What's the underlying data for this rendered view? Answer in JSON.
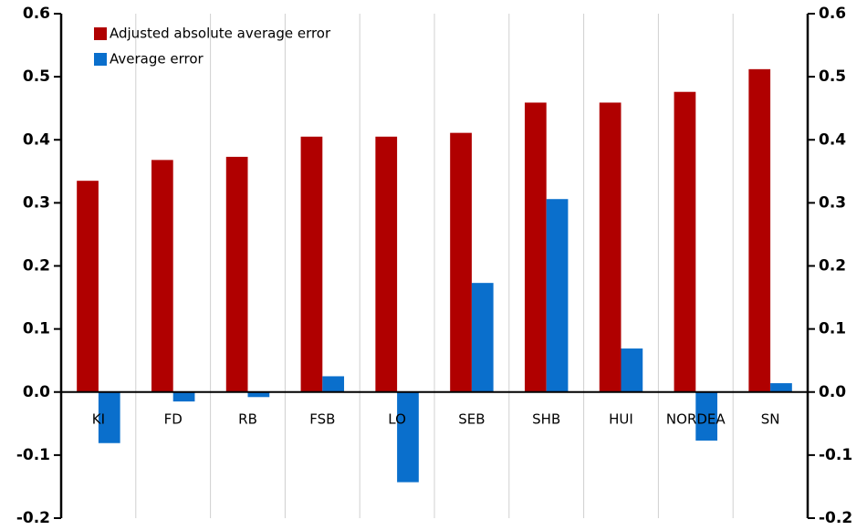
{
  "chart_data": {
    "type": "bar",
    "categories": [
      "KI",
      "FD",
      "RB",
      "FSB",
      "LO",
      "SEB",
      "SHB",
      "HUI",
      "NORDEA",
      "SN"
    ],
    "series": [
      {
        "name": "Adjusted absolute average error",
        "color": "#b00000",
        "values": [
          0.335,
          0.368,
          0.373,
          0.405,
          0.405,
          0.411,
          0.459,
          0.459,
          0.476,
          0.512
        ]
      },
      {
        "name": "Average error",
        "color": "#0a6fcc",
        "values": [
          -0.081,
          -0.015,
          -0.008,
          0.025,
          -0.143,
          0.173,
          0.306,
          0.069,
          -0.077,
          0.014
        ]
      }
    ],
    "ylim": [
      -0.2,
      0.6
    ],
    "yticks": [
      -0.2,
      -0.1,
      {
        "value": 0,
        "label": "0.0"
      },
      0.1,
      0.2,
      0.3,
      0.4,
      0.5,
      0.6
    ],
    "y2lim": [
      -0.2,
      0.6
    ],
    "y2ticks": [
      -0.2,
      -0.1,
      {
        "value": 0,
        "label": "0.0"
      },
      0.1,
      0.2,
      0.3,
      0.4,
      0.5,
      0.6
    ],
    "grid": "vertical",
    "legend": "upper left"
  }
}
